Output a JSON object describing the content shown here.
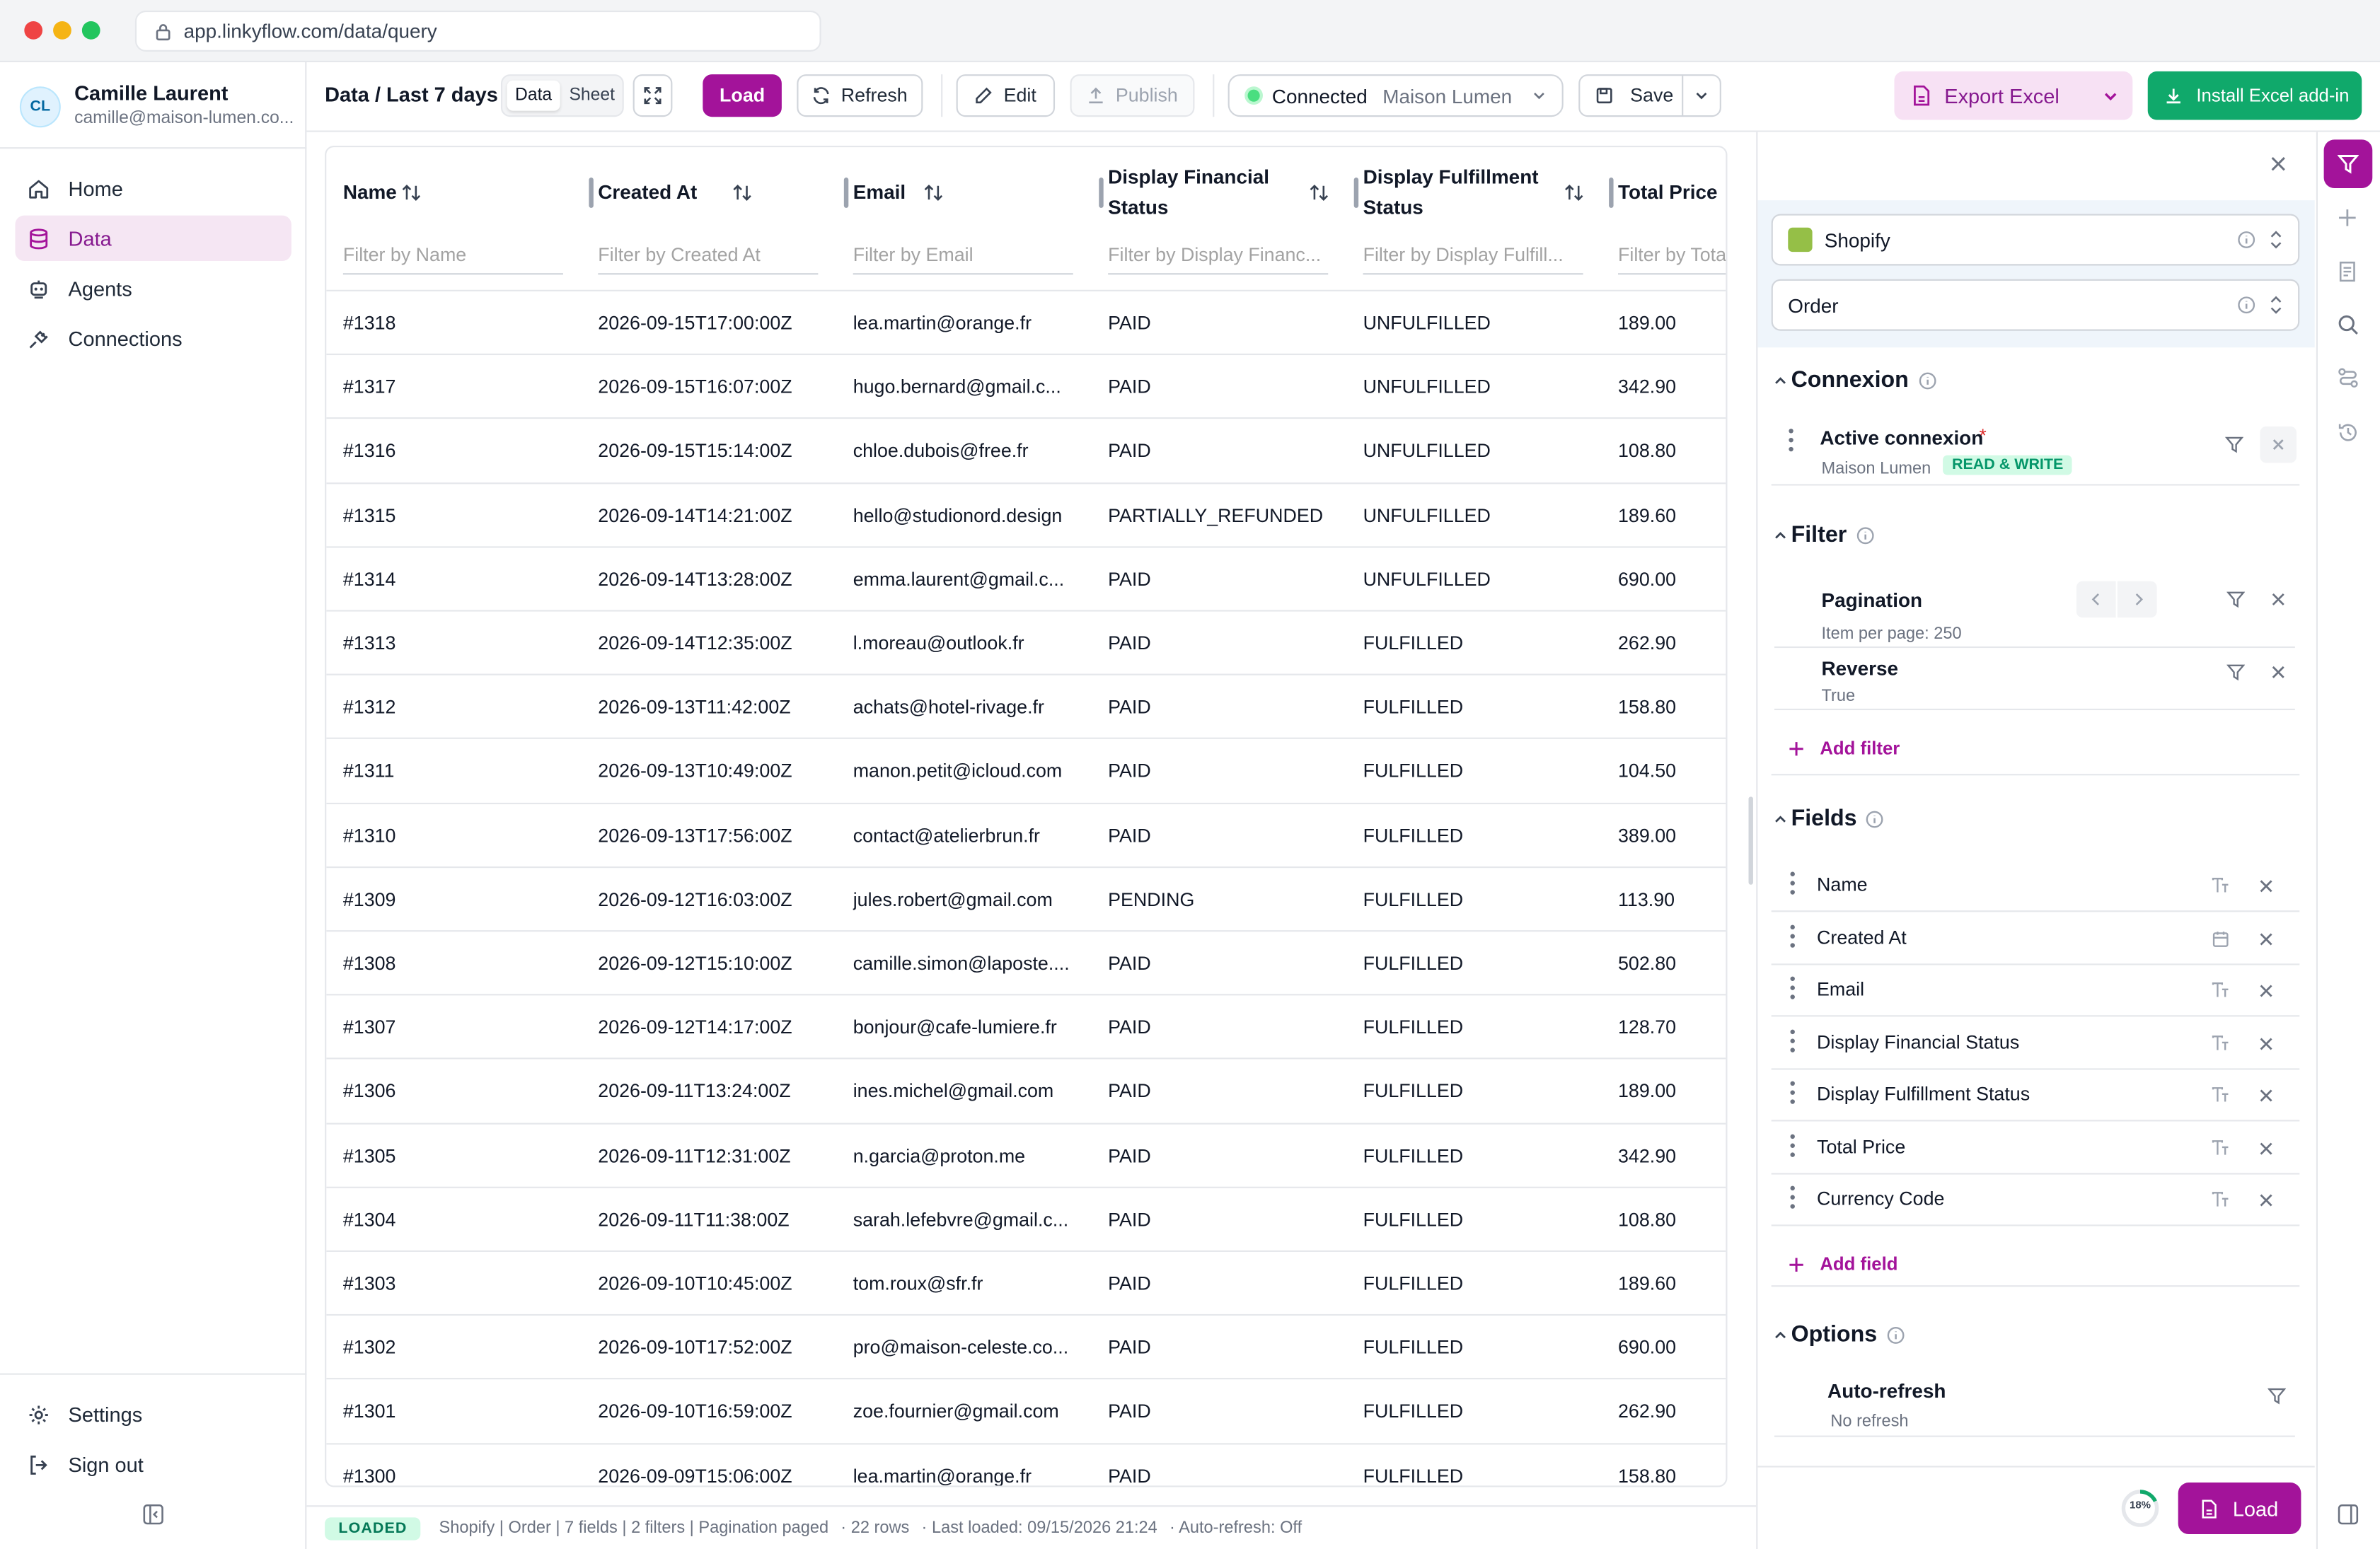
{
  "browser": {
    "url": "app.linkyflow.com/data/query"
  },
  "user": {
    "initials": "CL",
    "name": "Camille Laurent",
    "email": "camille@maison-lumen.co..."
  },
  "nav": {
    "home": "Home",
    "data": "Data",
    "agents": "Agents",
    "connections": "Connections",
    "settings": "Settings",
    "signout": "Sign out"
  },
  "toolbar": {
    "breadcrumb": "Data / Last 7 days",
    "tab_data": "Data",
    "tab_sheet": "Sheet",
    "load": "Load",
    "refresh": "Refresh",
    "edit": "Edit",
    "publish": "Publish",
    "conn_status": "Connected",
    "conn_name": "Maison Lumen",
    "save": "Save",
    "export": "Export Excel",
    "install": "Install Excel add-in"
  },
  "table": {
    "columns": [
      {
        "label": "Name",
        "filter": "Filter by Name"
      },
      {
        "label": "Created At",
        "filter": "Filter by Created At"
      },
      {
        "label": "Email",
        "filter": "Filter by Email"
      },
      {
        "label": "Display Financial Status",
        "filter": "Filter by Display Financ..."
      },
      {
        "label": "Display Fulfillment Status",
        "filter": "Filter by Display Fulfill..."
      },
      {
        "label": "Total Price",
        "filter": "Filter by Tota"
      }
    ],
    "rows": [
      [
        "#1318",
        "2026-09-15T17:00:00Z",
        "lea.martin@orange.fr",
        "PAID",
        "UNFULFILLED",
        "189.00"
      ],
      [
        "#1317",
        "2026-09-15T16:07:00Z",
        "hugo.bernard@gmail.c...",
        "PAID",
        "UNFULFILLED",
        "342.90"
      ],
      [
        "#1316",
        "2026-09-15T15:14:00Z",
        "chloe.dubois@free.fr",
        "PAID",
        "UNFULFILLED",
        "108.80"
      ],
      [
        "#1315",
        "2026-09-14T14:21:00Z",
        "hello@studionord.design",
        "PARTIALLY_REFUNDED",
        "UNFULFILLED",
        "189.60"
      ],
      [
        "#1314",
        "2026-09-14T13:28:00Z",
        "emma.laurent@gmail.c...",
        "PAID",
        "UNFULFILLED",
        "690.00"
      ],
      [
        "#1313",
        "2026-09-14T12:35:00Z",
        "l.moreau@outlook.fr",
        "PAID",
        "FULFILLED",
        "262.90"
      ],
      [
        "#1312",
        "2026-09-13T11:42:00Z",
        "achats@hotel-rivage.fr",
        "PAID",
        "FULFILLED",
        "158.80"
      ],
      [
        "#1311",
        "2026-09-13T10:49:00Z",
        "manon.petit@icloud.com",
        "PAID",
        "FULFILLED",
        "104.50"
      ],
      [
        "#1310",
        "2026-09-13T17:56:00Z",
        "contact@atelierbrun.fr",
        "PAID",
        "FULFILLED",
        "389.00"
      ],
      [
        "#1309",
        "2026-09-12T16:03:00Z",
        "jules.robert@gmail.com",
        "PENDING",
        "FULFILLED",
        "113.90"
      ],
      [
        "#1308",
        "2026-09-12T15:10:00Z",
        "camille.simon@laposte....",
        "PAID",
        "FULFILLED",
        "502.80"
      ],
      [
        "#1307",
        "2026-09-12T14:17:00Z",
        "bonjour@cafe-lumiere.fr",
        "PAID",
        "FULFILLED",
        "128.70"
      ],
      [
        "#1306",
        "2026-09-11T13:24:00Z",
        "ines.michel@gmail.com",
        "PAID",
        "FULFILLED",
        "189.00"
      ],
      [
        "#1305",
        "2026-09-11T12:31:00Z",
        "n.garcia@proton.me",
        "PAID",
        "FULFILLED",
        "342.90"
      ],
      [
        "#1304",
        "2026-09-11T11:38:00Z",
        "sarah.lefebvre@gmail.c...",
        "PAID",
        "FULFILLED",
        "108.80"
      ],
      [
        "#1303",
        "2026-09-10T10:45:00Z",
        "tom.roux@sfr.fr",
        "PAID",
        "FULFILLED",
        "189.60"
      ],
      [
        "#1302",
        "2026-09-10T17:52:00Z",
        "pro@maison-celeste.co...",
        "PAID",
        "FULFILLED",
        "690.00"
      ],
      [
        "#1301",
        "2026-09-10T16:59:00Z",
        "zoe.fournier@gmail.com",
        "PAID",
        "FULFILLED",
        "262.90"
      ],
      [
        "#1300",
        "2026-09-09T15:06:00Z",
        "lea.martin@orange.fr",
        "PAID",
        "FULFILLED",
        "158.80"
      ]
    ]
  },
  "status": {
    "badge": "LOADED",
    "summary": "Shopify | Order | 7 fields | 2 filters | Pagination paged",
    "rows": "· 22 rows",
    "last": "· Last loaded: 09/15/2026 21:24",
    "auto": "· Auto-refresh: Off"
  },
  "panel": {
    "source": "Shopify",
    "object": "Order",
    "connexion": {
      "title": "Connexion",
      "active_label": "Active connexion",
      "required": "*",
      "name": "Maison Lumen",
      "badge": "READ & WRITE"
    },
    "filter": {
      "title": "Filter",
      "pagination": "Pagination",
      "per_page": "Item per page: 250",
      "reverse": "Reverse",
      "reverse_val": "True",
      "add": "Add filter"
    },
    "fields": {
      "title": "Fields",
      "items": [
        "Name",
        "Created At",
        "Email",
        "Display Financial Status",
        "Display Fulfillment Status",
        "Total Price",
        "Currency Code"
      ],
      "add": "Add field"
    },
    "options": {
      "title": "Options",
      "auto": "Auto-refresh",
      "auto_val": "No refresh"
    },
    "progress": "18%",
    "progress_value": 18,
    "load": "Load"
  },
  "colors": {
    "accent": "#a3139a",
    "green": "#10a96b",
    "export_bg": "#f7e1f4"
  }
}
